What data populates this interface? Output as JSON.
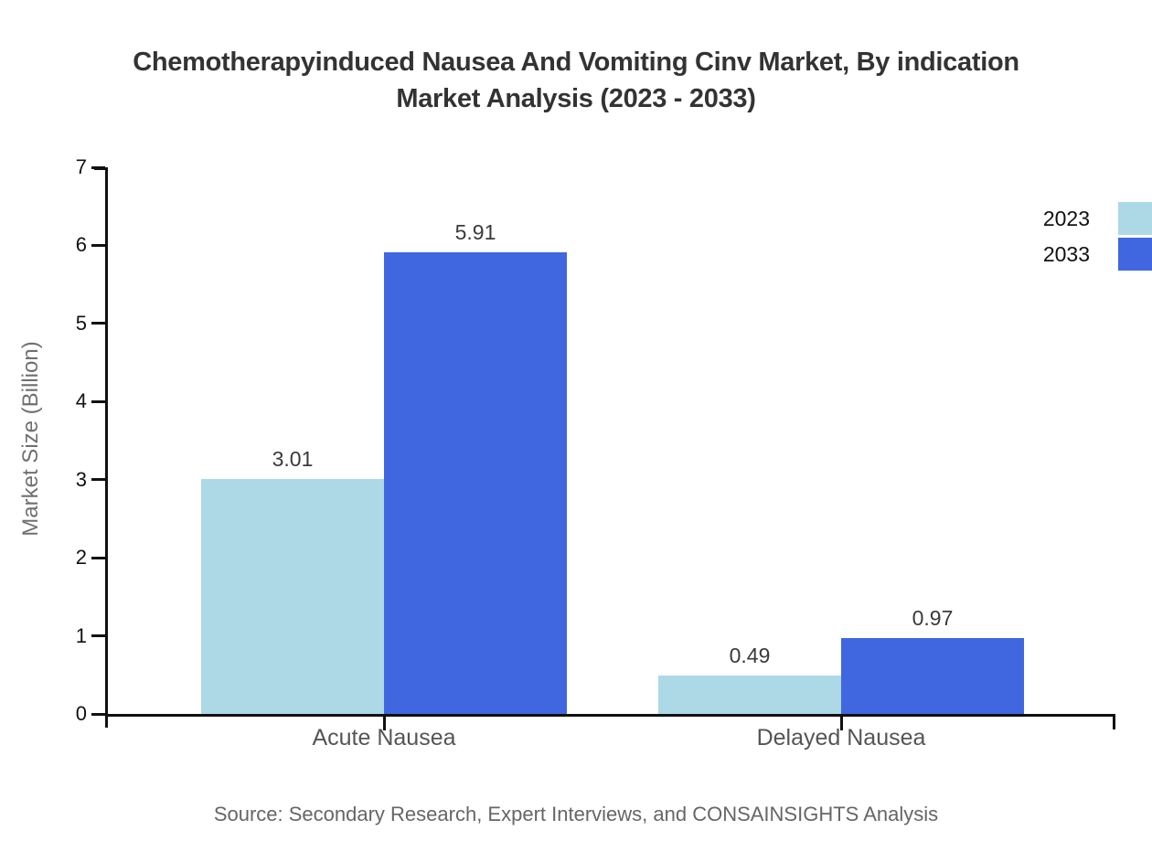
{
  "title_lines": [
    "Chemotherapyinduced Nausea And Vomiting Cinv Market, By indication",
    "Market Analysis (2023 - 2033)"
  ],
  "source_note": "Source: Secondary Research, Expert Interviews, and CONSAINSIGHTS Analysis",
  "chart_data": {
    "type": "bar",
    "title": "Chemotherapyinduced Nausea And Vomiting Cinv Market, By indication Market Analysis (2023 - 2033)",
    "categories": [
      "Acute Nausea",
      "Delayed Nausea"
    ],
    "series": [
      {
        "name": "2023",
        "color": "#add8e6",
        "values": [
          3.01,
          0.49
        ]
      },
      {
        "name": "2033",
        "color": "#4067df",
        "values": [
          5.91,
          0.97
        ]
      }
    ],
    "xlabel": "",
    "ylabel": "Market Size (Billion)",
    "ylim": [
      0,
      7
    ],
    "yticks": [
      0,
      1,
      2,
      3,
      4,
      5,
      6,
      7
    ],
    "grid": false,
    "legend_position": "top-right",
    "value_labels": true,
    "axis_color": "#111111"
  }
}
